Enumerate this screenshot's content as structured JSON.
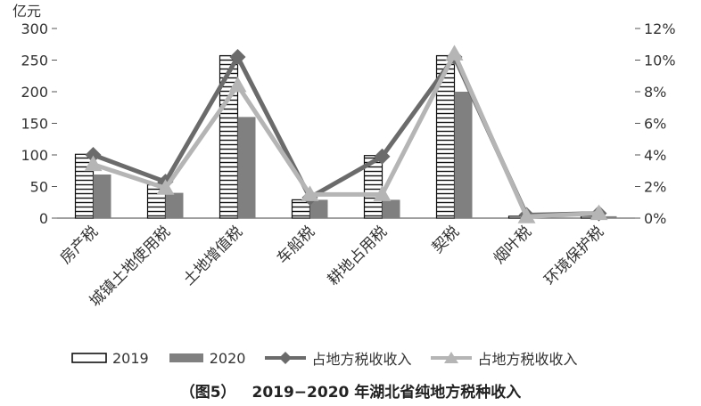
{
  "chart_data": {
    "type": "bar",
    "categories": [
      "房产税",
      "城镇土地使用税",
      "土地增值税",
      "车船税",
      "耕地占用税",
      "契税",
      "烟叶税",
      "环境保护税"
    ],
    "series": [
      {
        "name": "2019",
        "kind": "bar",
        "axis": "left",
        "pattern": "hatched",
        "color": "#111111",
        "values": [
          101,
          55,
          257,
          29,
          99,
          257,
          3,
          3
        ]
      },
      {
        "name": "2020",
        "kind": "bar",
        "axis": "left",
        "pattern": "solid",
        "color": "#808080",
        "values": [
          69,
          40,
          160,
          29,
          29,
          200,
          2,
          3
        ]
      },
      {
        "name": "占地方税收收入",
        "kind": "line",
        "axis": "right",
        "marker": "diamond",
        "color": "#6b6b6b",
        "values": [
          4.0,
          2.3,
          10.2,
          1.3,
          3.9,
          10.2,
          0.2,
          0.3
        ]
      },
      {
        "name": "占地方税收收入",
        "kind": "line",
        "axis": "right",
        "marker": "triangle",
        "color": "#b5b5b5",
        "values": [
          3.4,
          1.9,
          8.4,
          1.5,
          1.5,
          10.4,
          0.1,
          0.3
        ]
      }
    ],
    "y_left": {
      "unit": "亿元",
      "min": 0,
      "max": 300,
      "ticks": [
        0,
        50,
        100,
        150,
        200,
        250,
        300
      ]
    },
    "y_right": {
      "min": 0,
      "max": 12,
      "ticks": [
        "0%",
        "2%",
        "4%",
        "6%",
        "8%",
        "10%",
        "12%"
      ]
    },
    "legend_position": "bottom",
    "grid": false
  },
  "caption": {
    "label": "（图5）",
    "title": "2019−2020 年湖北省纯地方税种收入"
  }
}
